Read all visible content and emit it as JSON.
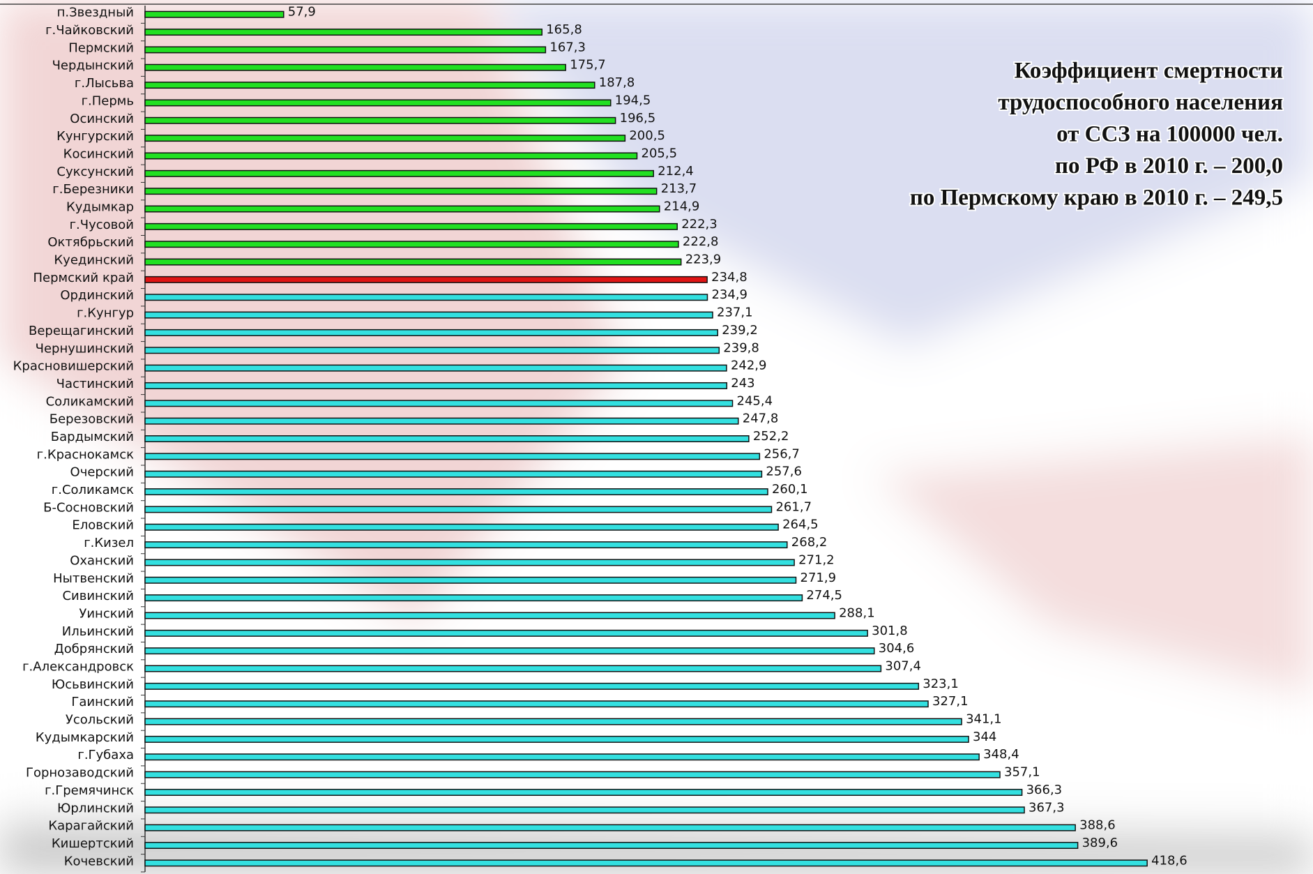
{
  "chart_data": {
    "type": "hbar",
    "title": [
      "Коэффициент смертности",
      "трудоспособного населения",
      "от ССЗ на 100000 чел.",
      "по РФ в 2010 г. – 200,0",
      "по Пермскому краю в 2010 г. – 249,5"
    ],
    "categories": [
      "п.Звездный",
      "г.Чайковский",
      "Пермский",
      "Чердынский",
      "г.Лысьва",
      "г.Пермь",
      "Осинский",
      "Кунгурский",
      "Косинский",
      "Суксунский",
      "г.Березники",
      "Кудымкар",
      "г.Чусовой",
      "Октябрьский",
      "Куединский",
      "Пермский край",
      "Ординский",
      "г.Кунгур",
      "Верещагинский",
      "Чернушинский",
      "Красновишерский",
      "Частинский",
      "Соликамский",
      "Березовский",
      "Бардымский",
      "г.Краснокамск",
      "Очерский",
      "г.Соликамск",
      "Б-Сосновский",
      "Еловский",
      "г.Кизел",
      "Оханский",
      "Нытвенский",
      "Сивинский",
      "Уинский",
      "Ильинский",
      "Добрянский",
      "г.Александровск",
      "Юсьвинский",
      "Гаинский",
      "Усольский",
      "Кудымкарский",
      "г.Губаха",
      "Горнозаводский",
      "г.Гремячинск",
      "Юрлинский",
      "Карагайский",
      "Кишертский",
      "Кочевский"
    ],
    "values": [
      57.9,
      165.8,
      167.3,
      175.7,
      187.8,
      194.5,
      196.5,
      200.5,
      205.5,
      212.4,
      213.7,
      214.9,
      222.3,
      222.8,
      223.9,
      234.8,
      234.9,
      237.1,
      239.2,
      239.8,
      242.9,
      243,
      245.4,
      247.8,
      252.2,
      256.7,
      257.6,
      260.1,
      261.7,
      264.5,
      268.2,
      271.2,
      271.9,
      274.5,
      288.1,
      301.8,
      304.6,
      307.4,
      323.1,
      327.1,
      341.1,
      344,
      348.4,
      357.1,
      366.3,
      367.3,
      388.6,
      389.6,
      418.6
    ],
    "value_labels": [
      "57,9",
      "165,8",
      "167,3",
      "175,7",
      "187,8",
      "194,5",
      "196,5",
      "200,5",
      "205,5",
      "212,4",
      "213,7",
      "214,9",
      "222,3",
      "222,8",
      "223,9",
      "234,8",
      "234,9",
      "237,1",
      "239,2",
      "239,8",
      "242,9",
      "243",
      "245,4",
      "247,8",
      "252,2",
      "256,7",
      "257,6",
      "260,1",
      "261,7",
      "264,5",
      "268,2",
      "271,2",
      "271,9",
      "274,5",
      "288,1",
      "301,8",
      "304,6",
      "307,4",
      "323,1",
      "327,1",
      "341,1",
      "344",
      "348,4",
      "357,1",
      "366,3",
      "367,3",
      "388,6",
      "389,6",
      "418,6"
    ],
    "colors": [
      "#22e022",
      "#22e022",
      "#22e022",
      "#22e022",
      "#22e022",
      "#22e022",
      "#22e022",
      "#22e022",
      "#22e022",
      "#22e022",
      "#22e022",
      "#22e022",
      "#22e022",
      "#22e022",
      "#22e022",
      "#e01414",
      "#33e0e0",
      "#33e0e0",
      "#33e0e0",
      "#33e0e0",
      "#33e0e0",
      "#33e0e0",
      "#33e0e0",
      "#33e0e0",
      "#33e0e0",
      "#33e0e0",
      "#33e0e0",
      "#33e0e0",
      "#33e0e0",
      "#33e0e0",
      "#33e0e0",
      "#33e0e0",
      "#33e0e0",
      "#33e0e0",
      "#33e0e0",
      "#33e0e0",
      "#33e0e0",
      "#33e0e0",
      "#33e0e0",
      "#33e0e0",
      "#33e0e0",
      "#33e0e0",
      "#33e0e0",
      "#33e0e0",
      "#33e0e0",
      "#33e0e0",
      "#33e0e0",
      "#33e0e0",
      "#33e0e0"
    ],
    "xlim": [
      0,
      487
    ]
  }
}
